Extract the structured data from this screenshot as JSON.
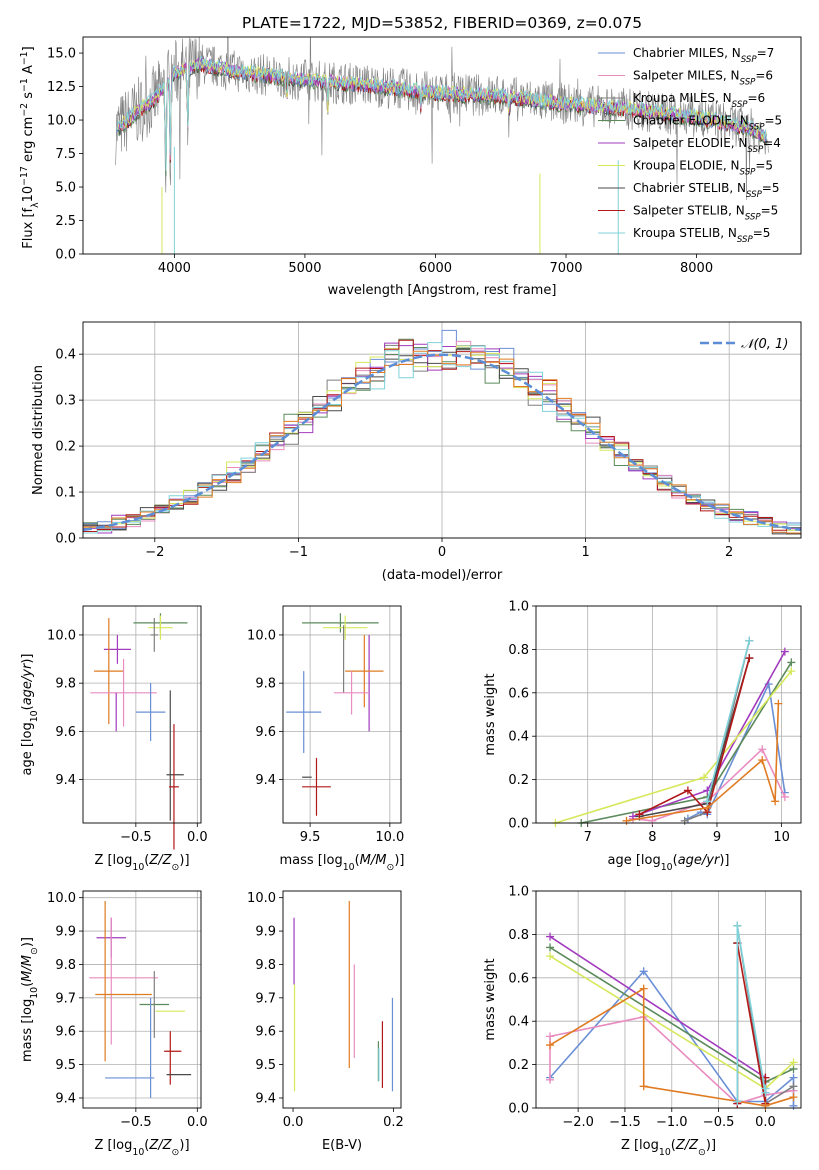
{
  "figure": {
    "title": "PLATE=1722, MJD=53852, FIBERID=0369, z=0.075"
  },
  "models": [
    {
      "name": "Chabrier MILES",
      "nssp": 7,
      "color": "#6a8fd6"
    },
    {
      "name": "Salpeter MILES",
      "nssp": 6,
      "color": "#e98cc0"
    },
    {
      "name": "Kroupa MILES",
      "nssp": 6,
      "color": "#7f7f7f"
    },
    {
      "name": "Chabrier ELODIE",
      "nssp": 5,
      "color": "#5b8a5b"
    },
    {
      "name": "Salpeter ELODIE",
      "nssp": 4,
      "color": "#a23bbd"
    },
    {
      "name": "Kroupa ELODIE",
      "nssp": 5,
      "color": "#d6e85a"
    },
    {
      "name": "Chabrier STELIB",
      "nssp": 5,
      "color": "#4a4a4a"
    },
    {
      "name": "Salpeter STELIB",
      "nssp": 5,
      "color": "#b21818"
    },
    {
      "name": "Kroupa STELIB",
      "nssp": 5,
      "color": "#7fd3da"
    }
  ],
  "extra_colors": {
    "orange": "#e07b22",
    "gray": "#7f7f7f"
  },
  "chart_data": [
    {
      "id": "spectrum",
      "type": "line",
      "title": "PLATE=1722, MJD=53852, FIBERID=0369, z=0.075",
      "xlabel": "wavelength [Angstrom, rest frame]",
      "ylabel": "Flux [f_λ 10^-17 erg cm^-2 s^-1 A^-1]",
      "xlim": [
        3300,
        8800
      ],
      "ylim": [
        0,
        16.2
      ],
      "xticks": [
        4000,
        5000,
        6000,
        7000,
        8000
      ],
      "yticks": [
        0.0,
        2.5,
        5.0,
        7.5,
        10.0,
        12.5,
        15.0
      ],
      "legend": "top-right",
      "observed_color": "#7f7f7f",
      "continuum": [
        [
          3550,
          9.2
        ],
        [
          3700,
          10.5
        ],
        [
          3850,
          11.6
        ],
        [
          4000,
          13.5
        ],
        [
          4200,
          14.2
        ],
        [
          4500,
          13.6
        ],
        [
          5000,
          13.0
        ],
        [
          5500,
          12.6
        ],
        [
          6000,
          12.0
        ],
        [
          6500,
          11.8
        ],
        [
          7000,
          11.2
        ],
        [
          7500,
          10.8
        ],
        [
          8000,
          10.2
        ],
        [
          8400,
          9.4
        ],
        [
          8550,
          8.7
        ]
      ]
    },
    {
      "id": "residuals",
      "type": "line",
      "xlabel": "(data-model)/error",
      "ylabel": "Normed distribution",
      "xlim": [
        -2.5,
        2.5
      ],
      "ylim": [
        0,
        0.47
      ],
      "xticks": [
        -2,
        -1,
        0,
        1,
        2
      ],
      "yticks": [
        0.0,
        0.1,
        0.2,
        0.3,
        0.4
      ],
      "grid": true,
      "legend": "top-right",
      "gauss_label": "𝒩(0, 1)",
      "gauss_color": "#5b8ed6",
      "bin_edges_start": -2.5,
      "bin_width": 0.1,
      "n_bins": 50
    },
    {
      "id": "age-Z",
      "type": "scatter",
      "xlabel": "Z [log10(Z/Z⊙)]",
      "ylabel": "age [log10(age/yr)]",
      "xlim": [
        -0.93,
        0.03
      ],
      "ylim": [
        9.22,
        10.12
      ],
      "xticks": [
        -0.5,
        0.0
      ],
      "yticks": [
        9.4,
        9.6,
        9.8,
        10.0
      ],
      "grid": true,
      "points": [
        {
          "x": -0.3,
          "y": 10.05,
          "ex": 0.22,
          "ey": 0.04,
          "model": 3
        },
        {
          "x": -0.3,
          "y": 10.03,
          "ex": 0.1,
          "ey": 0.05,
          "model": 5
        },
        {
          "x": -0.35,
          "y": 10.0,
          "ex": 0.03,
          "ey": 0.07,
          "model": 2
        },
        {
          "x": -0.65,
          "y": 9.94,
          "ex": 0.11,
          "ey": 0.06,
          "model": 4
        },
        {
          "x": -0.72,
          "y": 9.85,
          "ex": 0.12,
          "ey": 0.22,
          "model": "orange"
        },
        {
          "x": -0.6,
          "y": 9.76,
          "ex": 0.27,
          "ey": 0.14,
          "model": 1
        },
        {
          "x": -0.66,
          "y": 9.68,
          "ex": 0.0,
          "ey": 0.08,
          "model": 4
        },
        {
          "x": -0.38,
          "y": 9.68,
          "ex": 0.12,
          "ey": 0.12,
          "model": 0
        },
        {
          "x": -0.18,
          "y": 9.42,
          "ex": 0.07,
          "ey": 0.0,
          "model": 6
        },
        {
          "x": -0.22,
          "y": 9.5,
          "ex": 0.0,
          "ey": 0.27,
          "model": 6
        },
        {
          "x": -0.19,
          "y": 9.37,
          "ex": 0.04,
          "ey": 0.26,
          "model": 7
        }
      ]
    },
    {
      "id": "age-mass",
      "type": "scatter",
      "xlabel": "mass [log10(M/M⊙)]",
      "ylabel": "",
      "xlim": [
        9.33,
        10.07
      ],
      "ylim": [
        9.22,
        10.12
      ],
      "xticks": [
        9.5,
        10.0
      ],
      "yticks": [
        9.4,
        9.6,
        9.8,
        10.0
      ],
      "grid": true,
      "points": [
        {
          "x": 9.69,
          "y": 10.05,
          "ex": 0.24,
          "ey": 0.04,
          "model": 3
        },
        {
          "x": 9.72,
          "y": 10.03,
          "ex": 0.14,
          "ey": 0.05,
          "model": 5
        },
        {
          "x": 9.71,
          "y": 9.9,
          "ex": 0.0,
          "ey": 0.14,
          "model": 2
        },
        {
          "x": 9.87,
          "y": 9.8,
          "ex": 0.0,
          "ey": 0.2,
          "model": 4
        },
        {
          "x": 9.84,
          "y": 9.85,
          "ex": 0.12,
          "ey": 0.15,
          "model": "orange"
        },
        {
          "x": 9.76,
          "y": 9.76,
          "ex": 0.11,
          "ey": 0.09,
          "model": 1
        },
        {
          "x": 9.46,
          "y": 9.68,
          "ex": 0.11,
          "ey": 0.17,
          "model": 0
        },
        {
          "x": 9.48,
          "y": 9.41,
          "ex": 0.03,
          "ey": 0.0,
          "model": 6
        },
        {
          "x": 9.5,
          "y": 9.42,
          "ex": 0.0,
          "ey": 0.0,
          "model": 8
        },
        {
          "x": 9.54,
          "y": 9.37,
          "ex": 0.09,
          "ey": 0.12,
          "model": 7
        }
      ]
    },
    {
      "id": "weights-age",
      "type": "line",
      "xlabel": "age  [log10(age/yr)]",
      "ylabel": "mass weight",
      "xlim": [
        6.2,
        10.3
      ],
      "ylim": [
        0,
        1.0
      ],
      "xticks": [
        7,
        8,
        9,
        10
      ],
      "yticks": [
        0.0,
        0.2,
        0.4,
        0.6,
        0.8,
        1.0
      ],
      "grid": true,
      "series": [
        {
          "model": 0,
          "x": [
            8.55,
            8.75,
            8.85,
            9.8,
            10.05
          ],
          "y": [
            0.02,
            0.05,
            0.04,
            0.64,
            0.14
          ]
        },
        {
          "model": 1,
          "x": [
            7.7,
            8.0,
            8.85,
            9.7,
            10.05
          ],
          "y": [
            0.02,
            0.01,
            0.1,
            0.34,
            0.12
          ]
        },
        {
          "model": 2,
          "x": [
            8.5,
            8.85,
            9.5
          ],
          "y": [
            0.01,
            0.05,
            0.84
          ]
        },
        {
          "model": 3,
          "x": [
            6.9,
            8.85,
            10.15
          ],
          "y": [
            0.0,
            0.12,
            0.74
          ]
        },
        {
          "model": 4,
          "x": [
            7.7,
            8.85,
            10.05
          ],
          "y": [
            0.03,
            0.15,
            0.79
          ]
        },
        {
          "model": 5,
          "x": [
            6.5,
            8.8,
            10.15
          ],
          "y": [
            0.0,
            0.21,
            0.7
          ]
        },
        {
          "model": 6,
          "x": [
            7.8,
            8.85,
            9.5
          ],
          "y": [
            0.03,
            0.09,
            0.76
          ]
        },
        {
          "model": 7,
          "x": [
            7.8,
            8.55,
            8.85,
            9.5
          ],
          "y": [
            0.04,
            0.15,
            0.05,
            0.76
          ]
        },
        {
          "model": "orange",
          "x": [
            7.6,
            8.85,
            9.7,
            9.9,
            9.95
          ],
          "y": [
            0.01,
            0.07,
            0.29,
            0.1,
            0.55
          ]
        },
        {
          "model": 8,
          "x": [
            8.85,
            9.5
          ],
          "y": [
            0.1,
            0.84
          ]
        }
      ]
    },
    {
      "id": "mass-Z",
      "type": "scatter",
      "xlabel": "Z [log10(Z/Z⊙)]",
      "ylabel": "mass [log10(M/M⊙)]",
      "xlim": [
        -0.93,
        0.03
      ],
      "ylim": [
        9.37,
        10.02
      ],
      "xticks": [
        -0.5,
        0.0
      ],
      "yticks": [
        9.4,
        9.5,
        9.6,
        9.7,
        9.8,
        9.9,
        10.0
      ],
      "grid": true,
      "points": [
        {
          "x": -0.7,
          "y": 9.88,
          "ex": 0.12,
          "ey": 0.06,
          "model": 4
        },
        {
          "x": -0.7,
          "y": 9.75,
          "ex": 0.0,
          "ey": 0.19,
          "model": 1
        },
        {
          "x": -0.6,
          "y": 9.76,
          "ex": 0.28,
          "ey": 0.0,
          "model": 1
        },
        {
          "x": -0.75,
          "y": 9.75,
          "ex": 0.0,
          "ey": 0.24,
          "model": "orange"
        },
        {
          "x": -0.6,
          "y": 9.71,
          "ex": 0.23,
          "ey": 0.0,
          "model": "orange"
        },
        {
          "x": -0.35,
          "y": 9.68,
          "ex": 0.12,
          "ey": 0.0,
          "model": 3
        },
        {
          "x": -0.35,
          "y": 9.68,
          "ex": 0.0,
          "ey": 0.1,
          "model": 2
        },
        {
          "x": -0.22,
          "y": 9.66,
          "ex": 0.12,
          "ey": 0.0,
          "model": 5
        },
        {
          "x": -0.38,
          "y": 9.55,
          "ex": 0.0,
          "ey": 0.15,
          "model": 0
        },
        {
          "x": -0.55,
          "y": 9.46,
          "ex": 0.2,
          "ey": 0.0,
          "model": 0
        },
        {
          "x": -0.2,
          "y": 9.54,
          "ex": 0.07,
          "ey": 0.0,
          "model": 7
        },
        {
          "x": -0.22,
          "y": 9.52,
          "ex": 0.0,
          "ey": 0.08,
          "model": 7
        },
        {
          "x": -0.15,
          "y": 9.47,
          "ex": 0.1,
          "ey": 0.0,
          "model": 6
        }
      ]
    },
    {
      "id": "mass-ebv",
      "type": "scatter",
      "xlabel": "E(B-V)",
      "ylabel": "",
      "xlim": [
        -0.02,
        0.215
      ],
      "ylim": [
        9.37,
        10.02
      ],
      "xticks": [
        0.0,
        0.2
      ],
      "yticks": [
        9.4,
        9.5,
        9.6,
        9.7,
        9.8,
        9.9,
        10.0
      ],
      "grid": false,
      "points": [
        {
          "x": 0.002,
          "y": 9.84,
          "ex": 0.0,
          "ey": 0.1,
          "model": 4
        },
        {
          "x": 0.003,
          "y": 9.58,
          "ex": 0.0,
          "ey": 0.16,
          "model": 5
        },
        {
          "x": 0.112,
          "y": 9.74,
          "ex": 0.0,
          "ey": 0.25,
          "model": "orange"
        },
        {
          "x": 0.122,
          "y": 9.66,
          "ex": 0.0,
          "ey": 0.14,
          "model": 1
        },
        {
          "x": 0.17,
          "y": 9.51,
          "ex": 0.0,
          "ey": 0.06,
          "model": 3
        },
        {
          "x": 0.171,
          "y": 9.5,
          "ex": 0.0,
          "ey": 0.05,
          "model": 8
        },
        {
          "x": 0.178,
          "y": 9.53,
          "ex": 0.0,
          "ey": 0.1,
          "model": 7
        },
        {
          "x": 0.198,
          "y": 9.56,
          "ex": 0.0,
          "ey": 0.14,
          "model": 0
        }
      ]
    },
    {
      "id": "weights-Z",
      "type": "line",
      "xlabel": "Z [log10(Z/Z⊙)]",
      "ylabel": "mass weight",
      "xlim": [
        -2.45,
        0.38
      ],
      "ylim": [
        0,
        1.0
      ],
      "xticks": [
        -2.0,
        -1.5,
        -1.0,
        -0.5,
        0.0
      ],
      "yticks": [
        0.0,
        0.2,
        0.4,
        0.6,
        0.8,
        1.0
      ],
      "grid": true,
      "series": [
        {
          "model": 0,
          "x": [
            -2.3,
            -1.3,
            -0.3,
            0.0,
            0.3,
            0.3
          ],
          "y": [
            0.14,
            0.63,
            0.03,
            0.03,
            0.14,
            0.01
          ]
        },
        {
          "model": 1,
          "x": [
            -2.3,
            -2.3,
            -1.3,
            -0.3,
            0.0,
            0.3
          ],
          "y": [
            0.13,
            0.33,
            0.42,
            0.02,
            0.06,
            0.08
          ]
        },
        {
          "model": 2,
          "x": [
            -0.3,
            -0.3,
            0.0,
            0.3
          ],
          "y": [
            0.03,
            0.84,
            0.02,
            0.1
          ]
        },
        {
          "model": 3,
          "x": [
            -2.3,
            0.0,
            0.3
          ],
          "y": [
            0.74,
            0.12,
            0.18
          ]
        },
        {
          "model": 4,
          "x": [
            -2.3,
            0.0,
            0.0
          ],
          "y": [
            0.79,
            0.14,
            0.07
          ]
        },
        {
          "model": 5,
          "x": [
            -2.3,
            0.0,
            0.3
          ],
          "y": [
            0.7,
            0.09,
            0.21
          ]
        },
        {
          "model": 6,
          "x": [
            -0.3,
            -0.3
          ],
          "y": [
            0.03,
            0.76
          ]
        },
        {
          "model": 7,
          "x": [
            -0.3,
            -0.3,
            0.0,
            0.0
          ],
          "y": [
            0.02,
            0.76,
            0.02,
            0.14
          ]
        },
        {
          "model": "orange",
          "x": [
            -2.3,
            -1.3,
            -1.3,
            0.0,
            0.3
          ],
          "y": [
            0.29,
            0.55,
            0.1,
            0.01,
            0.05
          ]
        },
        {
          "model": 8,
          "x": [
            -0.3,
            -0.3,
            0.0,
            0.0
          ],
          "y": [
            0.03,
            0.84,
            0.07,
            0.09
          ]
        }
      ]
    }
  ]
}
